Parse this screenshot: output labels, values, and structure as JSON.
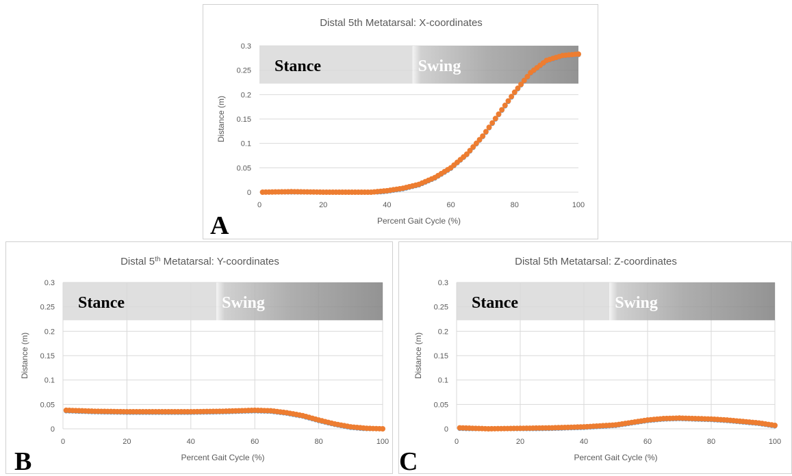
{
  "colors": {
    "series_primary": "#ED7D31",
    "series_secondary": "#5B9BD5",
    "gridline": "#D9D9D9",
    "axis_text": "#595959",
    "stance_band": "#D9D9D9",
    "swing_band_light": "#F2F2F2",
    "swing_band_dark": "#808080"
  },
  "chart_data": [
    {
      "panel_label": "A",
      "type": "scatter",
      "title": "Distal 5th Metatarsal: X-coordinates",
      "title_sup": "",
      "xlabel": "Percent Gait Cycle (%)",
      "ylabel": "Distance (m)",
      "xlim": [
        0,
        100
      ],
      "ylim": [
        0,
        0.3
      ],
      "xticks": [
        "0",
        "20",
        "40",
        "60",
        "80",
        "100"
      ],
      "yticks": [
        "0",
        "0.05",
        "0.1",
        "0.15",
        "0.2",
        "0.25",
        "0.3"
      ],
      "grid": "horizontal",
      "phase_labels": {
        "stance": "Stance",
        "swing": "Swing"
      },
      "series": [
        {
          "x": [
            1,
            10,
            20,
            30,
            35,
            40,
            45,
            50,
            55,
            60,
            65,
            70,
            75,
            80,
            85,
            90,
            95,
            100
          ],
          "y": [
            0.0,
            0.001,
            0.0,
            0.0,
            0.0,
            0.003,
            0.008,
            0.016,
            0.03,
            0.05,
            0.078,
            0.115,
            0.16,
            0.205,
            0.245,
            0.27,
            0.28,
            0.283
          ]
        }
      ]
    },
    {
      "panel_label": "B",
      "type": "scatter",
      "title": "Distal 5",
      "title_sup": "th",
      "title_rest": " Metatarsal: Y-coordinates",
      "xlabel": "Percent Gait Cycle (%)",
      "ylabel": "Distance (m)",
      "xlim": [
        0,
        100
      ],
      "ylim": [
        0,
        0.3
      ],
      "xticks": [
        "0",
        "20",
        "40",
        "60",
        "80",
        "100"
      ],
      "yticks": [
        "0",
        "0.05",
        "0.1",
        "0.15",
        "0.2",
        "0.25",
        "0.3"
      ],
      "grid": "both",
      "phase_labels": {
        "stance": "Stance",
        "swing": "Swing"
      },
      "series": [
        {
          "x": [
            1,
            10,
            20,
            30,
            40,
            50,
            55,
            60,
            65,
            70,
            75,
            80,
            85,
            90,
            95,
            100
          ],
          "y": [
            0.038,
            0.036,
            0.035,
            0.035,
            0.035,
            0.036,
            0.037,
            0.038,
            0.037,
            0.033,
            0.027,
            0.018,
            0.01,
            0.004,
            0.001,
            0.0
          ]
        }
      ]
    },
    {
      "panel_label": "C",
      "type": "scatter",
      "title": "Distal 5th Metatarsal: Z-coordinates",
      "title_sup": "",
      "xlabel": "Percent Gait Cycle (%)",
      "ylabel": "Distance (m)",
      "xlim": [
        0,
        100
      ],
      "ylim": [
        0,
        0.3
      ],
      "xticks": [
        "0",
        "20",
        "40",
        "60",
        "80",
        "100"
      ],
      "yticks": [
        "0",
        "0.05",
        "0.1",
        "0.15",
        "0.2",
        "0.25",
        "0.3"
      ],
      "grid": "both",
      "phase_labels": {
        "stance": "Stance",
        "swing": "Swing"
      },
      "series": [
        {
          "x": [
            1,
            10,
            20,
            30,
            40,
            50,
            55,
            60,
            65,
            70,
            75,
            80,
            85,
            90,
            95,
            100
          ],
          "y": [
            0.002,
            0.0,
            0.001,
            0.002,
            0.004,
            0.008,
            0.013,
            0.018,
            0.021,
            0.022,
            0.021,
            0.02,
            0.018,
            0.015,
            0.012,
            0.007
          ]
        }
      ]
    }
  ]
}
